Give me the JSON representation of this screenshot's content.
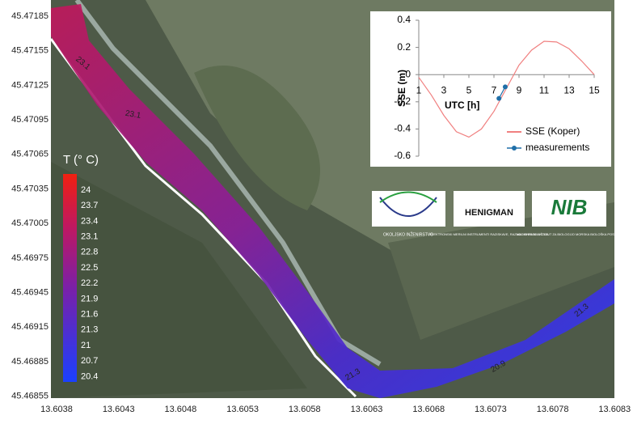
{
  "map": {
    "lat_ticks": [
      45.47185,
      45.47155,
      45.47125,
      45.47095,
      45.47065,
      45.47035,
      45.47005,
      45.46975,
      45.46945,
      45.46915,
      45.46885,
      45.46855
    ],
    "lon_ticks": [
      13.6038,
      13.6043,
      13.6048,
      13.6053,
      13.6058,
      13.6063,
      13.6068,
      13.6073,
      13.6078,
      13.6083
    ],
    "colorbar": {
      "title": "T (° C)",
      "labels": [
        "24",
        "23.7",
        "23.4",
        "23.1",
        "22.8",
        "22.5",
        "22.2",
        "21.9",
        "21.6",
        "21.3",
        "21",
        "20.7",
        "20.4"
      ]
    },
    "contour_labels": [
      "23.1",
      "23.1",
      "21.3",
      "20.9",
      "21.3"
    ]
  },
  "logos": [
    {
      "name": "OKOLJSKO INŽENIRSTVO"
    },
    {
      "name": "HENIGMAN",
      "subtitle": "ELEKTRONSKI MERILNI INSTRUMENTI RAZISKAVE, RAZVOJ IN PRODUKCIJA"
    },
    {
      "name": "NIB",
      "subtitle": "NACIONALNI INŠTITUT ZA BIOLOGIJO MORSKA BIOLOŠKA POSTAJA"
    }
  ],
  "chart_data": {
    "type": "line",
    "y_label": "SSE (m)",
    "x_label": "UTC [h]",
    "x": [
      1,
      2,
      3,
      4,
      5,
      6,
      7,
      8,
      9,
      10,
      11,
      12,
      13,
      14,
      15
    ],
    "xlim": [
      1,
      15
    ],
    "xticks": [
      1,
      3,
      5,
      7,
      9,
      11,
      13,
      15
    ],
    "ylim": [
      -0.6,
      0.4
    ],
    "yticks": [
      -0.6,
      -0.4,
      -0.2,
      0,
      0.2,
      0.4
    ],
    "series": [
      {
        "name": "SSE (Koper)",
        "color": "#f08080",
        "values": [
          -0.02,
          -0.15,
          -0.3,
          -0.42,
          -0.46,
          -0.4,
          -0.27,
          -0.1,
          0.07,
          0.18,
          0.245,
          0.24,
          0.19,
          0.1,
          0
        ]
      },
      {
        "name": "measurements",
        "color": "#1f6fa8",
        "x": [
          7.4,
          7.9
        ],
        "values": [
          -0.175,
          -0.09
        ]
      }
    ]
  }
}
